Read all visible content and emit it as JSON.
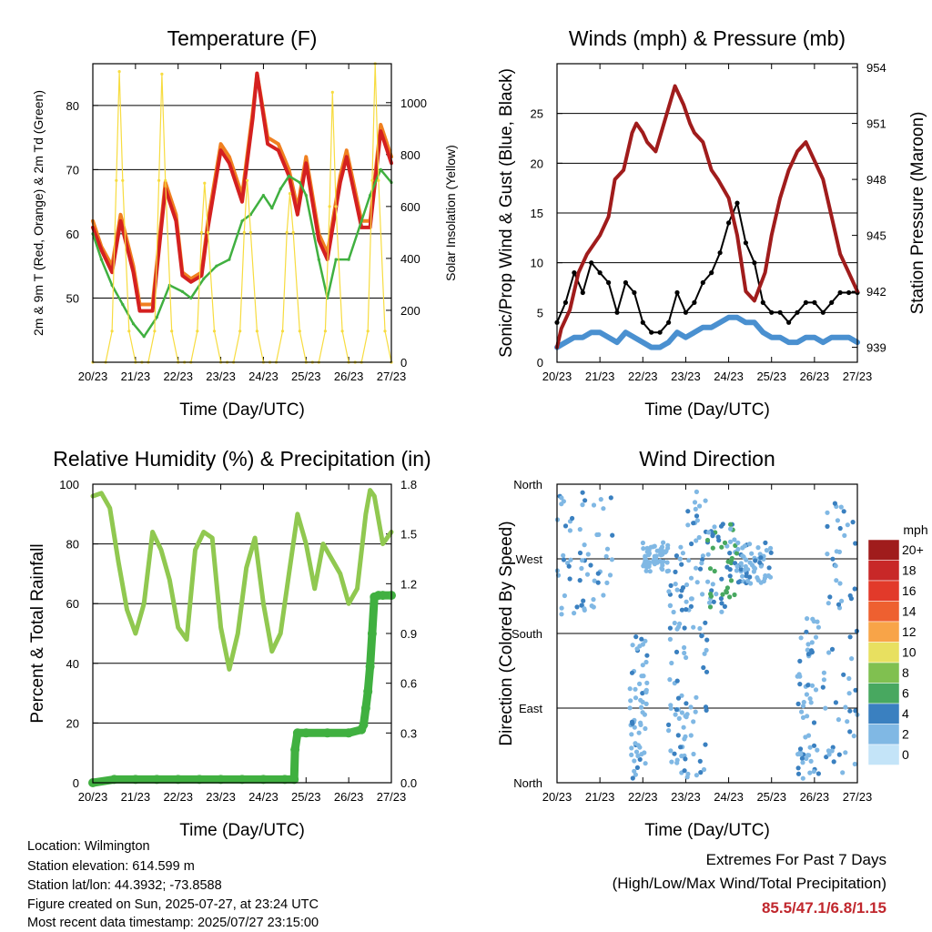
{
  "chart_data": [
    {
      "type": "line",
      "title": "Temperature (F)",
      "xlabel": "Time (Day/UTC)",
      "ylabel": "2m & 9m T (Red, Orange) & 2m Td (Green)",
      "y2label": "Solar Insolation (Yellow)",
      "x_ticks": [
        "20/23",
        "21/23",
        "22/23",
        "23/23",
        "24/23",
        "25/23",
        "26/23",
        "27/23"
      ],
      "xlim": [
        0,
        7
      ],
      "ylim": [
        40,
        86.5
      ],
      "y_ticks": [
        "50",
        "60",
        "70",
        "80"
      ],
      "y2lim": [
        0,
        1150
      ],
      "y2_ticks": [
        "0",
        "200",
        "400",
        "600",
        "800",
        "1000"
      ],
      "grid": "horizontal",
      "series": [
        {
          "color": "#f08020",
          "x": [
            0,
            0.2,
            0.45,
            0.65,
            0.95,
            1.1,
            1.4,
            1.7,
            1.95,
            2.1,
            2.3,
            2.55,
            2.7,
            3.0,
            3.2,
            3.5,
            3.75,
            3.85,
            4.1,
            4.35,
            4.6,
            4.8,
            5.0,
            5.3,
            5.5,
            5.8,
            5.95,
            6.3,
            6.5,
            6.75,
            7.0
          ],
          "y": [
            62,
            58,
            55,
            63,
            55,
            49,
            49,
            68,
            63,
            54,
            53,
            54,
            62,
            74,
            72,
            66,
            79,
            85,
            75,
            74,
            70,
            64,
            72,
            60,
            57,
            69,
            73,
            62,
            62,
            77,
            72
          ]
        },
        {
          "color": "#d42020",
          "x": [
            0,
            0.2,
            0.45,
            0.65,
            0.95,
            1.1,
            1.4,
            1.7,
            1.95,
            2.1,
            2.3,
            2.55,
            2.7,
            3.0,
            3.2,
            3.5,
            3.75,
            3.85,
            4.1,
            4.35,
            4.6,
            4.8,
            5.0,
            5.3,
            5.5,
            5.8,
            5.95,
            6.3,
            6.5,
            6.75,
            7.0
          ],
          "y": [
            61,
            57.5,
            54,
            62,
            54,
            48,
            48,
            67,
            62,
            53.5,
            52.5,
            53.5,
            61,
            73,
            71,
            65,
            78,
            85,
            74,
            73,
            69,
            63,
            71,
            59,
            56,
            68,
            72,
            61,
            61,
            76,
            71
          ]
        },
        {
          "color": "#40b040",
          "x": [
            0,
            0.2,
            0.45,
            0.7,
            0.95,
            1.2,
            1.5,
            1.8,
            2.1,
            2.3,
            2.6,
            2.9,
            3.2,
            3.5,
            3.7,
            4.0,
            4.2,
            4.4,
            4.6,
            4.85,
            5.0,
            5.3,
            5.5,
            5.7,
            6.0,
            6.3,
            6.5,
            6.75,
            7.0
          ],
          "y": [
            60,
            56,
            52,
            49,
            46,
            44,
            47,
            52,
            51,
            50,
            53,
            55,
            56,
            62,
            63,
            66,
            64,
            67,
            69,
            68,
            66,
            56,
            50,
            56,
            56,
            62,
            66,
            70,
            68
          ]
        },
        {
          "color": "#f7dc40",
          "x": [
            0,
            0.3,
            0.45,
            0.55,
            0.62,
            0.7,
            0.85,
            1.0,
            1.15,
            1.3,
            1.45,
            1.55,
            1.62,
            1.7,
            1.85,
            2.0,
            2.15,
            2.3,
            2.45,
            2.55,
            2.62,
            2.7,
            2.85,
            3.0,
            3.15,
            3.3,
            3.45,
            3.55,
            3.62,
            3.7,
            3.85,
            4.0,
            4.15,
            4.3,
            4.45,
            4.55,
            4.62,
            4.7,
            4.85,
            5.0,
            5.15,
            5.3,
            5.45,
            5.55,
            5.62,
            5.7,
            5.85,
            6.0,
            6.15,
            6.3,
            6.45,
            6.55,
            6.62,
            6.7,
            6.85,
            7.0
          ],
          "y2": [
            0,
            0,
            120,
            700,
            1120,
            700,
            120,
            0,
            0,
            0,
            120,
            700,
            1110,
            700,
            120,
            0,
            0,
            0,
            120,
            500,
            690,
            500,
            120,
            0,
            0,
            0,
            120,
            500,
            700,
            500,
            120,
            0,
            0,
            0,
            120,
            500,
            650,
            500,
            120,
            0,
            0,
            0,
            120,
            600,
            1040,
            600,
            120,
            0,
            0,
            0,
            120,
            700,
            1150,
            700,
            120,
            0
          ]
        }
      ]
    },
    {
      "type": "line",
      "title": "Winds (mph) & Pressure (mb)",
      "xlabel": "Time (Day/UTC)",
      "ylabel": "Sonic/Prop Wind & Gust (Blue, Black)",
      "y2label": "Station Pressure (Maroon)",
      "x_ticks": [
        "20/23",
        "21/23",
        "22/23",
        "23/23",
        "24/23",
        "25/23",
        "26/23",
        "27/23"
      ],
      "xlim": [
        0,
        7
      ],
      "ylim": [
        0,
        30
      ],
      "y_ticks": [
        "0",
        "5",
        "10",
        "15",
        "20",
        "25"
      ],
      "y2lim": [
        938.2,
        954.2
      ],
      "y2_ticks": [
        "939",
        "942",
        "945",
        "948",
        "951",
        "954"
      ],
      "grid": "horizontal",
      "series": [
        {
          "color": "#000000",
          "x": [
            0,
            0.2,
            0.4,
            0.6,
            0.8,
            1.0,
            1.2,
            1.4,
            1.6,
            1.8,
            2.0,
            2.2,
            2.4,
            2.6,
            2.8,
            3.0,
            3.2,
            3.4,
            3.6,
            3.8,
            4.0,
            4.2,
            4.4,
            4.6,
            4.8,
            5.0,
            5.2,
            5.4,
            5.6,
            5.8,
            6.0,
            6.2,
            6.4,
            6.6,
            6.8,
            7.0
          ],
          "y": [
            4,
            6,
            9,
            7,
            10,
            9,
            8,
            5,
            8,
            7,
            4,
            3,
            3,
            4,
            7,
            5,
            6,
            8,
            9,
            11,
            14,
            16,
            12,
            10,
            6,
            5,
            5,
            4,
            5,
            6,
            6,
            5,
            6,
            7,
            7,
            7
          ]
        },
        {
          "color": "#4a90d0",
          "x": [
            0,
            0.2,
            0.4,
            0.6,
            0.8,
            1.0,
            1.2,
            1.4,
            1.6,
            1.8,
            2.0,
            2.2,
            2.4,
            2.6,
            2.8,
            3.0,
            3.2,
            3.4,
            3.6,
            3.8,
            4.0,
            4.2,
            4.4,
            4.6,
            4.8,
            5.0,
            5.2,
            5.4,
            5.6,
            5.8,
            6.0,
            6.2,
            6.4,
            6.6,
            6.8,
            7.0
          ],
          "y": [
            1.5,
            2,
            2.5,
            2.5,
            3,
            3,
            2.5,
            2,
            3,
            2.5,
            2,
            1.5,
            1.5,
            2,
            3,
            2.5,
            3,
            3.5,
            3.5,
            4,
            4.5,
            4.5,
            4,
            4,
            3,
            2.5,
            2.5,
            2,
            2,
            2.5,
            2.5,
            2,
            2.5,
            2.5,
            2.5,
            2
          ]
        },
        {
          "color": "#a01c1c",
          "x": [
            0,
            0.1,
            0.3,
            0.5,
            0.7,
            1.0,
            1.2,
            1.35,
            1.55,
            1.75,
            1.85,
            2.0,
            2.1,
            2.3,
            2.75,
            2.95,
            3.1,
            3.2,
            3.4,
            3.6,
            3.75,
            4.0,
            4.2,
            4.4,
            4.6,
            4.85,
            5.0,
            5.2,
            5.4,
            5.6,
            5.8,
            6.0,
            6.2,
            6.4,
            6.6,
            6.8,
            7.0
          ],
          "y2": [
            939,
            940,
            941,
            943,
            944,
            945,
            946,
            948,
            948.5,
            950.5,
            951,
            950.5,
            950,
            949.5,
            953,
            952,
            951,
            950.5,
            950,
            948.5,
            948,
            947,
            945,
            942,
            941.5,
            943,
            945,
            947,
            948.5,
            949.5,
            950,
            949,
            948,
            946,
            944,
            943,
            942
          ]
        }
      ]
    },
    {
      "type": "line",
      "title": "Relative Humidity (%) & Precipitation (in)",
      "xlabel": "Time (Day/UTC)",
      "ylabel": "Percent & Total Rainfall",
      "x_ticks": [
        "20/23",
        "21/23",
        "22/23",
        "23/23",
        "24/23",
        "25/23",
        "26/23",
        "27/23"
      ],
      "xlim": [
        0,
        7
      ],
      "ylim": [
        0,
        100
      ],
      "y_ticks": [
        "0",
        "20",
        "40",
        "60",
        "80",
        "100"
      ],
      "y2lim": [
        0,
        1.8
      ],
      "y2_ticks": [
        "0.0",
        "0.3",
        "0.6",
        "0.9",
        "1.2",
        "1.5",
        "1.8"
      ],
      "grid": "horizontal",
      "series": [
        {
          "color": "#90c850",
          "x": [
            0,
            0.2,
            0.4,
            0.6,
            0.8,
            1.0,
            1.2,
            1.4,
            1.6,
            1.8,
            2.0,
            2.2,
            2.4,
            2.6,
            2.8,
            3.0,
            3.2,
            3.4,
            3.6,
            3.8,
            4.0,
            4.2,
            4.4,
            4.6,
            4.8,
            5.0,
            5.2,
            5.4,
            5.6,
            5.8,
            6.0,
            6.2,
            6.4,
            6.5,
            6.6,
            6.8,
            7.0
          ],
          "y": [
            96,
            97,
            92,
            74,
            58,
            50,
            60,
            84,
            78,
            68,
            52,
            48,
            78,
            84,
            82,
            52,
            38,
            50,
            72,
            82,
            60,
            44,
            50,
            70,
            90,
            80,
            65,
            80,
            75,
            70,
            60,
            65,
            90,
            98,
            96,
            80,
            84
          ]
        },
        {
          "color": "#40b040",
          "x": [
            0,
            0.5,
            1.0,
            1.5,
            2.0,
            2.5,
            3.0,
            3.5,
            4.0,
            4.5,
            4.72,
            4.74,
            4.8,
            5.0,
            5.5,
            6.0,
            6.3,
            6.35,
            6.4,
            6.45,
            6.5,
            6.55,
            6.6,
            6.7,
            6.8,
            7.0
          ],
          "y2": [
            0,
            0.02,
            0.02,
            0.02,
            0.02,
            0.02,
            0.02,
            0.02,
            0.02,
            0.02,
            0.02,
            0.2,
            0.3,
            0.3,
            0.3,
            0.3,
            0.32,
            0.35,
            0.45,
            0.55,
            0.7,
            0.9,
            1.12,
            1.13,
            1.13,
            1.13
          ]
        }
      ]
    },
    {
      "type": "scatter",
      "title": "Wind Direction",
      "xlabel": "Time (Day/UTC)",
      "ylabel": "Direction (Colored By Speed)",
      "x_ticks": [
        "20/23",
        "21/23",
        "22/23",
        "23/23",
        "24/23",
        "25/23",
        "26/23",
        "27/23"
      ],
      "xlim": [
        0,
        7
      ],
      "y_ticks": [
        "North",
        "East",
        "South",
        "West",
        "North"
      ],
      "ylim": [
        0,
        360
      ],
      "grid": "horizontal",
      "legend": {
        "title": "mph",
        "levels": [
          "20+",
          "18",
          "16",
          "14",
          "12",
          "10",
          "8",
          "6",
          "4",
          "2",
          "0"
        ],
        "colors": [
          "#a01c1c",
          "#c82828",
          "#e23a2a",
          "#ee6030",
          "#f8a448",
          "#e8e060",
          "#80c050",
          "#48a860",
          "#3a80c0",
          "#80b8e4",
          "#c4e4f8"
        ],
        "placement": "right"
      },
      "clusters": [
        {
          "x": [
            0,
            1.3
          ],
          "dir": [
            200,
            355
          ],
          "speed": [
            1,
            4
          ]
        },
        {
          "x": [
            1.7,
            2.1
          ],
          "dir": [
            5,
            180
          ],
          "speed": [
            1,
            4
          ]
        },
        {
          "x": [
            2.0,
            2.6
          ],
          "dir": [
            255,
            290
          ],
          "speed": [
            1,
            3
          ]
        },
        {
          "x": [
            2.6,
            3.0
          ],
          "dir": [
            5,
            290
          ],
          "speed": [
            1,
            4
          ]
        },
        {
          "x": [
            3.0,
            3.5
          ],
          "dir": [
            5,
            355
          ],
          "speed": [
            1,
            4
          ]
        },
        {
          "x": [
            3.5,
            4.2
          ],
          "dir": [
            205,
            315
          ],
          "speed": [
            2,
            7
          ]
        },
        {
          "x": [
            4.2,
            5.0
          ],
          "dir": [
            240,
            290
          ],
          "speed": [
            1,
            4
          ]
        },
        {
          "x": [
            5.6,
            6.1
          ],
          "dir": [
            5,
            200
          ],
          "speed": [
            1,
            4
          ]
        },
        {
          "x": [
            6.2,
            7.0
          ],
          "dir": [
            5,
            355
          ],
          "speed": [
            1,
            4
          ]
        }
      ]
    }
  ],
  "info": {
    "location": "Location: Wilmington",
    "elevation": "Station elevation: 614.599 m",
    "latlon": "Station lat/lon: 44.3932; -73.8588",
    "created": "Figure created on Sun, 2025-07-27, at 23:24 UTC",
    "recent": "Most recent data timestamp: 2025/07/27 23:15:00"
  },
  "extremes": {
    "title": "Extremes For Past 7 Days",
    "subtitle": "(High/Low/Max Wind/Total Precipitation)",
    "values": "85.5/47.1/6.8/1.15"
  }
}
